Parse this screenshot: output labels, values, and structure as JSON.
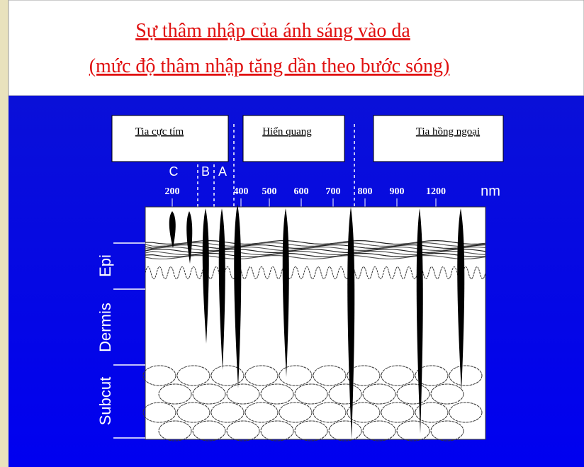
{
  "header": {
    "title": "Sự thâm nhập của ánh sáng vào da",
    "subtitle": "(mức độ thâm nhập tăng dần theo bước sóng)"
  },
  "bands": [
    "Tia cực tím",
    "Hiển quang",
    "Tia hồng ngoại"
  ],
  "uv_subbands": [
    "C",
    "B",
    "A"
  ],
  "wavelengths": [
    "200",
    "400",
    "500",
    "600",
    "700",
    "800",
    "900",
    "1200"
  ],
  "unit": "nm",
  "layers": [
    "Epi",
    "Dermis",
    "Subcut"
  ]
}
